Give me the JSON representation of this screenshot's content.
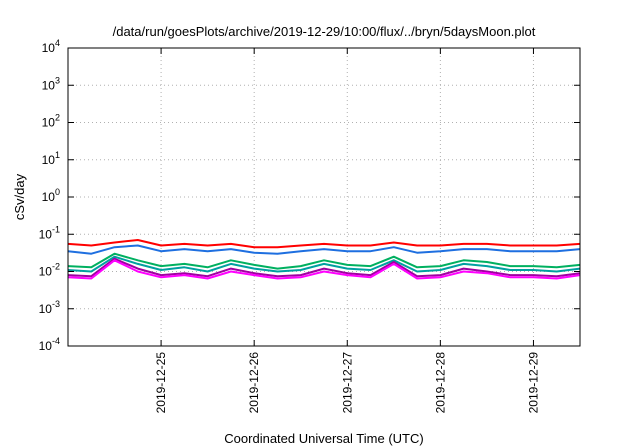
{
  "chart_data": {
    "type": "line",
    "title": "/data/run/goesPlots/archive/2019-12-29/10:00/flux/../bryn/5daysMoon.plot",
    "xlabel": "Coordinated Universal Time (UTC)",
    "ylabel": "cSv/day",
    "yscale": "log",
    "ylim": [
      0.0001,
      10000
    ],
    "xlim": [
      "2019-12-24T00:00",
      "2019-12-29T12:00"
    ],
    "grid": true,
    "x_ticks": [
      "2019-12-25",
      "2019-12-26",
      "2019-12-27",
      "2019-12-28",
      "2019-12-29"
    ],
    "y_ticks": [
      {
        "base": "10",
        "exp": "-4"
      },
      {
        "base": "10",
        "exp": "-3"
      },
      {
        "base": "10",
        "exp": "-2"
      },
      {
        "base": "10",
        "exp": "-1"
      },
      {
        "base": "10",
        "exp": "0"
      },
      {
        "base": "10",
        "exp": "1"
      },
      {
        "base": "10",
        "exp": "2"
      },
      {
        "base": "10",
        "exp": "3"
      },
      {
        "base": "10",
        "exp": "4"
      }
    ],
    "x": [
      "2019-12-24T00:00",
      "2019-12-24T06:00",
      "2019-12-24T12:00",
      "2019-12-24T18:00",
      "2019-12-25T00:00",
      "2019-12-25T06:00",
      "2019-12-25T12:00",
      "2019-12-25T18:00",
      "2019-12-26T00:00",
      "2019-12-26T06:00",
      "2019-12-26T12:00",
      "2019-12-26T18:00",
      "2019-12-27T00:00",
      "2019-12-27T06:00",
      "2019-12-27T12:00",
      "2019-12-27T18:00",
      "2019-12-28T00:00",
      "2019-12-28T06:00",
      "2019-12-28T12:00",
      "2019-12-28T18:00",
      "2019-12-29T00:00",
      "2019-12-29T06:00",
      "2019-12-29T12:00"
    ],
    "series": [
      {
        "color": "#ff0000",
        "values": [
          0.055,
          0.05,
          0.06,
          0.07,
          0.05,
          0.055,
          0.05,
          0.055,
          0.045,
          0.045,
          0.05,
          0.055,
          0.05,
          0.05,
          0.06,
          0.05,
          0.05,
          0.055,
          0.055,
          0.05,
          0.05,
          0.05,
          0.055
        ]
      },
      {
        "color": "#1e6fe0",
        "values": [
          0.035,
          0.03,
          0.045,
          0.05,
          0.035,
          0.04,
          0.035,
          0.04,
          0.032,
          0.03,
          0.035,
          0.04,
          0.035,
          0.035,
          0.045,
          0.032,
          0.035,
          0.04,
          0.04,
          0.035,
          0.035,
          0.035,
          0.04
        ]
      },
      {
        "color": "#00b060",
        "values": [
          0.014,
          0.013,
          0.03,
          0.02,
          0.014,
          0.016,
          0.013,
          0.02,
          0.015,
          0.012,
          0.014,
          0.02,
          0.015,
          0.014,
          0.025,
          0.013,
          0.014,
          0.02,
          0.018,
          0.014,
          0.014,
          0.013,
          0.015
        ]
      },
      {
        "color": "#00a0a0",
        "values": [
          0.011,
          0.01,
          0.025,
          0.016,
          0.011,
          0.013,
          0.01,
          0.016,
          0.012,
          0.01,
          0.011,
          0.016,
          0.012,
          0.011,
          0.02,
          0.01,
          0.011,
          0.016,
          0.014,
          0.011,
          0.011,
          0.01,
          0.012
        ]
      },
      {
        "color": "#a000a0",
        "values": [
          0.008,
          0.0075,
          0.022,
          0.012,
          0.008,
          0.009,
          0.0075,
          0.012,
          0.009,
          0.0075,
          0.008,
          0.012,
          0.009,
          0.008,
          0.018,
          0.0075,
          0.008,
          0.012,
          0.01,
          0.008,
          0.008,
          0.0075,
          0.009
        ]
      },
      {
        "color": "#ff00ff",
        "values": [
          0.007,
          0.0065,
          0.02,
          0.01,
          0.007,
          0.008,
          0.0065,
          0.01,
          0.008,
          0.0065,
          0.007,
          0.01,
          0.008,
          0.007,
          0.016,
          0.0065,
          0.007,
          0.01,
          0.009,
          0.007,
          0.007,
          0.0065,
          0.008
        ]
      }
    ]
  }
}
